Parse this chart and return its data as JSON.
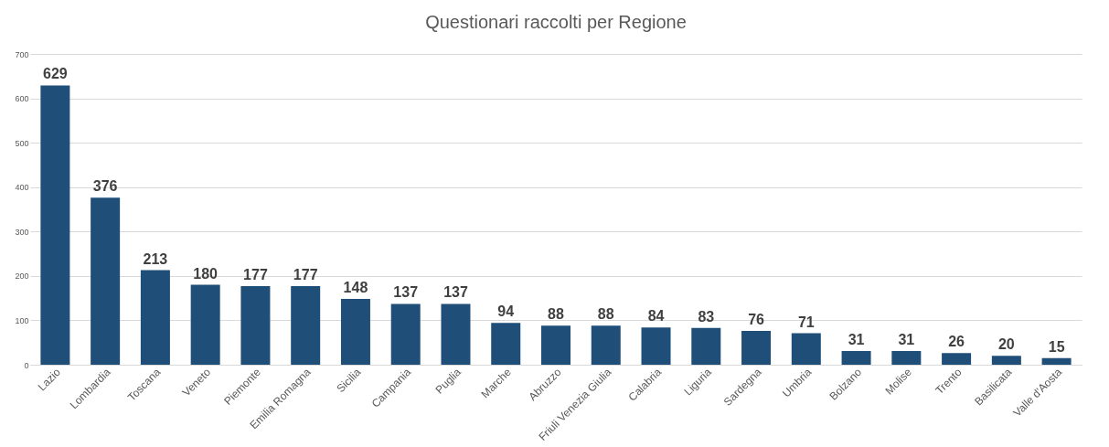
{
  "chart_data": {
    "type": "bar",
    "title": "Questionari raccolti per Regione",
    "categories": [
      "Lazio",
      "Lombardia",
      "Toscana",
      "Veneto",
      "Piemonte",
      "Emilia Romagna",
      "Sicilia",
      "Campania",
      "Puglia",
      "Marche",
      "Abruzzo",
      "Friuli Venezia Giulia",
      "Calabria",
      "Liguria",
      "Sardegna",
      "Umbria",
      "Bolzano",
      "Molise",
      "Trento",
      "Basilicata",
      "Valle d'Aosta"
    ],
    "values": [
      629,
      376,
      213,
      180,
      177,
      177,
      148,
      137,
      137,
      94,
      88,
      88,
      84,
      83,
      76,
      71,
      31,
      31,
      26,
      20,
      15
    ],
    "color": "#1f4e79",
    "ylim": [
      0,
      700
    ],
    "yticks": [
      0,
      100,
      200,
      300,
      400,
      500,
      600,
      700
    ],
    "grid": "y",
    "data_labels": true
  }
}
